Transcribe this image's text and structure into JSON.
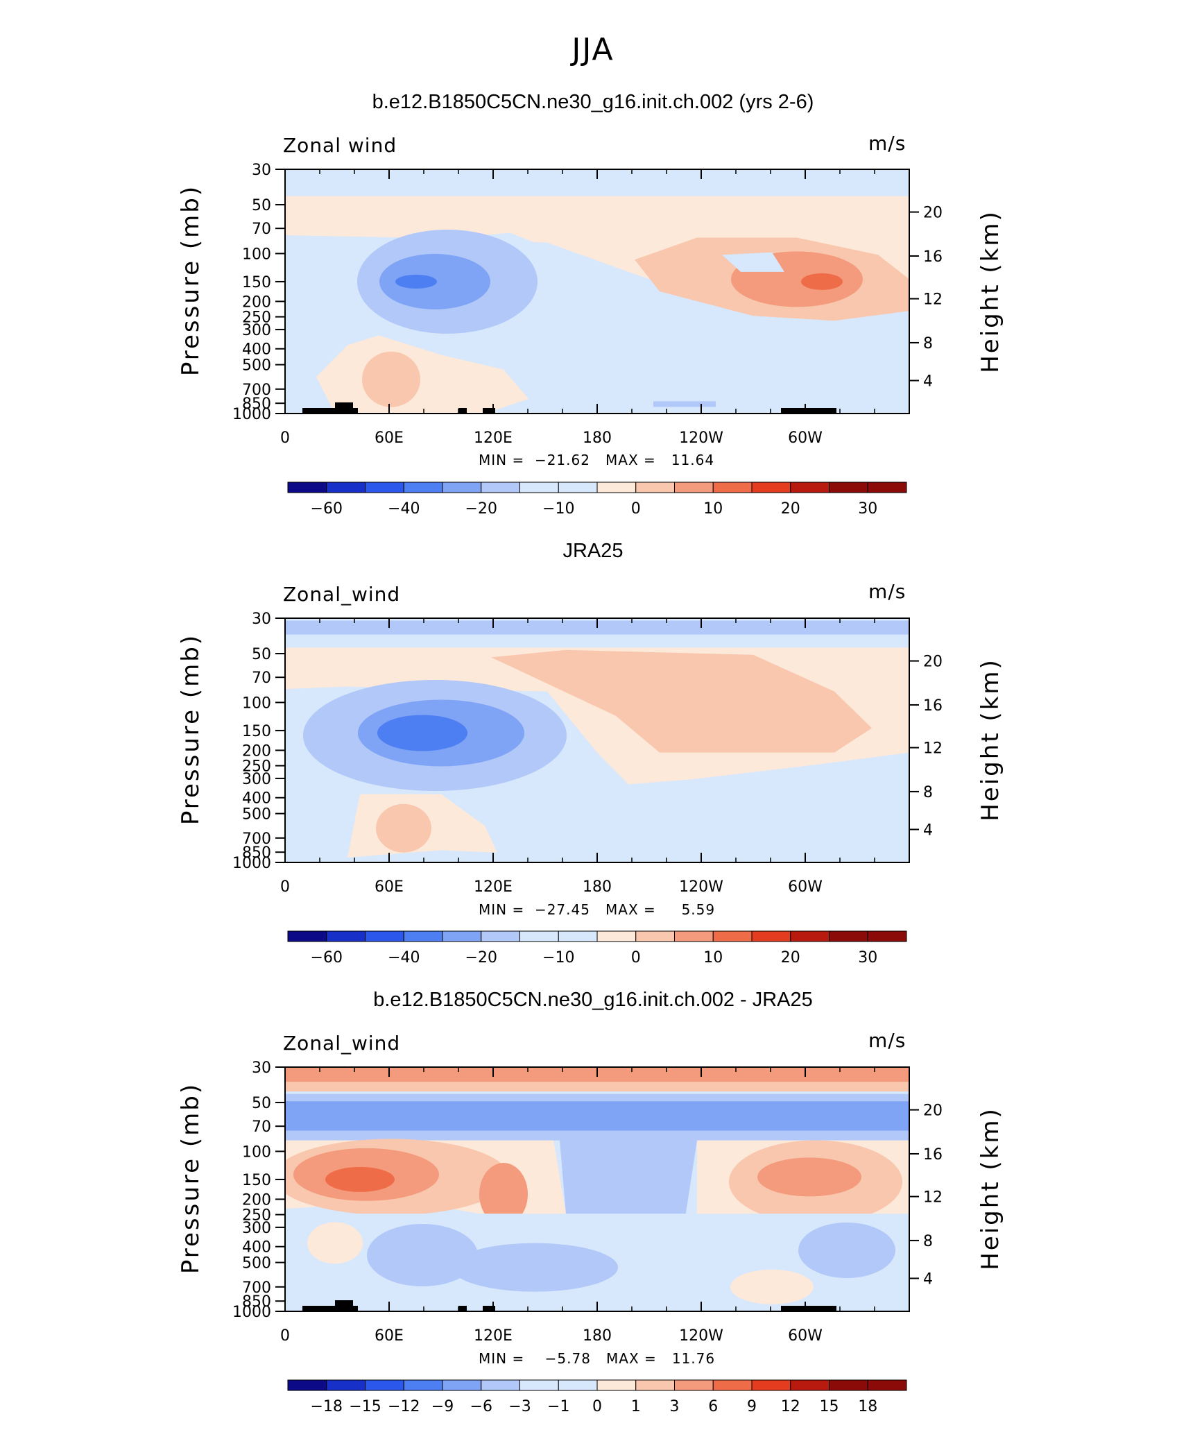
{
  "page_title": "JJA",
  "colors": {
    "scale": [
      "#0c0a87",
      "#1730c8",
      "#2b57ea",
      "#4d7ef2",
      "#7fa3f5",
      "#b1c8f9",
      "#d7e7fc",
      "#fde9da",
      "#f9c7ad",
      "#f39b7c",
      "#ef6c48",
      "#e33c1e",
      "#b81a10",
      "#8a0b08"
    ]
  },
  "chart_data": [
    {
      "type": "heatmap",
      "title": "b.e12.B1850C5CN.ne30_g16.init.ch.002 (yrs 2-6)",
      "variable": "Zonal wind",
      "units": "m/s",
      "min_label": "MIN =  −21.62   MAX =   11.64",
      "min": -21.62,
      "max": 11.64,
      "x_ticks": [
        "0",
        "60E",
        "120E",
        "180",
        "120W",
        "60W"
      ],
      "y_ticks": [
        "30",
        "50",
        "70",
        "100",
        "150",
        "200",
        "250",
        "300",
        "400",
        "500",
        "700",
        "850",
        "1000"
      ],
      "y_label": "Pressure  (mb)",
      "y2_ticks": [
        "20",
        "16",
        "12",
        "8",
        "4"
      ],
      "y2_label": "Height  (km)",
      "colorbar_labels": [
        "−60",
        "−40",
        "−20",
        "−10",
        "0",
        "10",
        "20",
        "30"
      ]
    },
    {
      "type": "heatmap",
      "title": "JRA25",
      "variable": "Zonal_wind",
      "units": "m/s",
      "min_label": "MIN =  −27.45   MAX =     5.59",
      "min": -27.45,
      "max": 5.59,
      "x_ticks": [
        "0",
        "60E",
        "120E",
        "180",
        "120W",
        "60W"
      ],
      "y_ticks": [
        "30",
        "50",
        "70",
        "100",
        "150",
        "200",
        "250",
        "300",
        "400",
        "500",
        "700",
        "850",
        "1000"
      ],
      "y_label": "Pressure  (mb)",
      "y2_ticks": [
        "20",
        "16",
        "12",
        "8",
        "4"
      ],
      "y2_label": "Height  (km)",
      "colorbar_labels": [
        "−60",
        "−40",
        "−20",
        "−10",
        "0",
        "10",
        "20",
        "30"
      ]
    },
    {
      "type": "heatmap",
      "title": "b.e12.B1850C5CN.ne30_g16.init.ch.002 - JRA25",
      "variable": "Zonal_wind",
      "units": "m/s",
      "min_label": "MIN =    −5.78   MAX =   11.76",
      "min": -5.78,
      "max": 11.76,
      "x_ticks": [
        "0",
        "60E",
        "120E",
        "180",
        "120W",
        "60W"
      ],
      "y_ticks": [
        "30",
        "50",
        "70",
        "100",
        "150",
        "200",
        "250",
        "300",
        "400",
        "500",
        "700",
        "850",
        "1000"
      ],
      "y_label": "Pressure  (mb)",
      "y2_ticks": [
        "20",
        "16",
        "12",
        "8",
        "4"
      ],
      "y2_label": "Height  (km)",
      "colorbar_labels": [
        "−18",
        "−15",
        "−12",
        "−9",
        "−6",
        "−3",
        "−1",
        "0",
        "1",
        "3",
        "6",
        "9",
        "12",
        "15",
        "18"
      ]
    }
  ]
}
